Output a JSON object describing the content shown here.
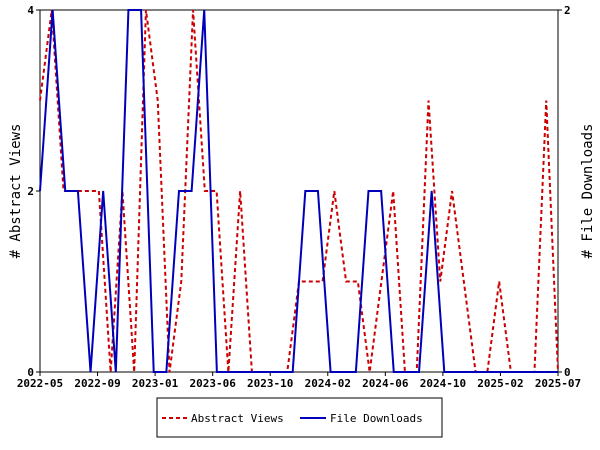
{
  "chart_data": {
    "type": "line",
    "left_axis_label": "# Abstract Views",
    "right_axis_label": "# File Downloads",
    "x_tick_labels": [
      "2022-05",
      "2022-09",
      "2023-01",
      "2023-06",
      "2023-10",
      "2024-02",
      "2024-06",
      "2024-10",
      "2025-02",
      "2025-07"
    ],
    "left_ylim": [
      0,
      4
    ],
    "left_yticks": [
      "0",
      "2",
      "4"
    ],
    "right_ylim": [
      0,
      2
    ],
    "right_yticks": [
      "0",
      "2"
    ],
    "series": [
      {
        "name": "Abstract Views",
        "axis": "left",
        "color": "#cc0000",
        "dash": "dashed",
        "values": [
          3,
          4,
          2,
          2,
          2,
          2,
          0,
          2,
          0,
          4,
          3,
          0,
          1,
          4,
          2,
          2,
          0,
          2,
          0,
          0,
          0,
          0,
          1,
          1,
          1,
          2,
          1,
          1,
          0,
          1,
          2,
          0,
          0,
          3,
          1,
          2,
          1,
          0,
          0,
          1,
          0,
          0,
          0,
          3,
          0
        ]
      },
      {
        "name": "File Downloads",
        "axis": "right",
        "color": "#0000bb",
        "dash": "solid",
        "values": [
          1,
          2,
          1,
          1,
          0,
          1,
          0,
          2,
          2,
          0,
          0,
          1,
          1,
          2,
          0,
          0,
          0,
          0,
          0,
          0,
          0,
          1,
          1,
          0,
          0,
          0,
          1,
          1,
          0,
          0,
          0,
          1,
          0,
          0,
          0,
          0,
          0,
          0,
          0,
          0,
          0,
          0
        ]
      }
    ],
    "legend": {
      "position": "bottom-center",
      "entries": [
        "Abstract Views",
        "File Downloads"
      ]
    },
    "grid": false
  }
}
